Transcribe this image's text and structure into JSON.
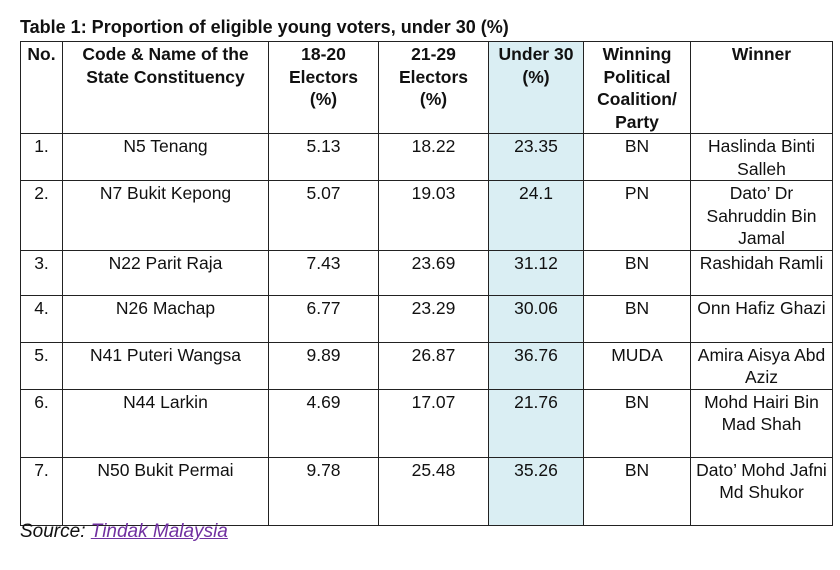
{
  "title": "Table 1: Proportion of eligible young voters, under 30 (%)",
  "table": {
    "headers": [
      "No.",
      "Code & Name of the State Constituency",
      "18-20 Electors (%)",
      "21-29 Electors (%)",
      "Under 30 (%)",
      "Winning Political Coalition/ Party",
      "Winner"
    ],
    "rows": [
      [
        "1.",
        "N5 Tenang",
        "5.13",
        "18.22",
        "23.35",
        "BN",
        "Haslinda Binti Salleh"
      ],
      [
        "2.",
        "N7 Bukit Kepong",
        "5.07",
        "19.03",
        "24.1",
        "PN",
        "Dato’ Dr Sahruddin Bin Jamal"
      ],
      [
        "3.",
        "N22 Parit Raja",
        "7.43",
        "23.69",
        "31.12",
        "BN",
        "Rashidah Ramli"
      ],
      [
        "4.",
        "N26 Machap",
        "6.77",
        "23.29",
        "30.06",
        "BN",
        "Onn Hafiz Ghazi"
      ],
      [
        "5.",
        "N41 Puteri Wangsa",
        "9.89",
        "26.87",
        "36.76",
        "MUDA",
        "Amira Aisya Abd Aziz"
      ],
      [
        "6.",
        "N44 Larkin",
        "4.69",
        "17.07",
        "21.76",
        "BN",
        "Mohd Hairi Bin Mad Shah"
      ],
      [
        "7.",
        "N50 Bukit Permai",
        "9.78",
        "25.48",
        "35.26",
        "BN",
        "Dato’ Mohd Jafni Md Shukor"
      ]
    ]
  },
  "source": {
    "label": "Source:",
    "link": "Tindak Malaysia"
  }
}
